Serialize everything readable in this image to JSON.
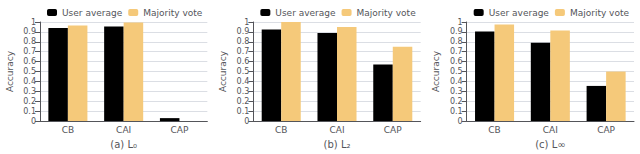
{
  "chart_data": [
    {
      "type": "bar",
      "xlabel": "(a) L₀",
      "ylabel": "Accuracy",
      "categories": [
        "CB",
        "CAI",
        "CAP"
      ],
      "series": [
        {
          "name": "User average",
          "color": "#000000",
          "values": [
            0.94,
            0.955,
            0.03
          ]
        },
        {
          "name": "Majority vote",
          "color": "#f5c97a",
          "values": [
            0.965,
            0.995,
            0.0
          ]
        }
      ],
      "ylim": [
        0,
        1.0
      ],
      "yticks": [
        0,
        0.1,
        0.2,
        0.3,
        0.4,
        0.5,
        0.6,
        0.7,
        0.8,
        0.9,
        1
      ],
      "grid": true,
      "legend": "upper right"
    },
    {
      "type": "bar",
      "xlabel": "(b) L₂",
      "ylabel": "Accuracy",
      "categories": [
        "CB",
        "CAI",
        "CAP"
      ],
      "series": [
        {
          "name": "User average",
          "color": "#000000",
          "values": [
            0.925,
            0.89,
            0.57
          ]
        },
        {
          "name": "Majority vote",
          "color": "#f5c97a",
          "values": [
            1.0,
            0.95,
            0.75
          ]
        }
      ],
      "ylim": [
        0,
        1.0
      ],
      "yticks": [
        0,
        0.1,
        0.2,
        0.3,
        0.4,
        0.5,
        0.6,
        0.7,
        0.8,
        0.9,
        1
      ],
      "grid": true,
      "legend": "upper right"
    },
    {
      "type": "bar",
      "xlabel": "(c) L∞",
      "ylabel": "Accuracy",
      "categories": [
        "CB",
        "CAI",
        "CAP"
      ],
      "series": [
        {
          "name": "User average",
          "color": "#000000",
          "values": [
            0.905,
            0.79,
            0.355
          ]
        },
        {
          "name": "Majority vote",
          "color": "#f5c97a",
          "values": [
            0.975,
            0.915,
            0.5
          ]
        }
      ],
      "ylim": [
        0,
        1.0
      ],
      "yticks": [
        0,
        0.1,
        0.2,
        0.3,
        0.4,
        0.5,
        0.6,
        0.7,
        0.8,
        0.9,
        1
      ],
      "grid": true,
      "legend": "upper right"
    }
  ]
}
